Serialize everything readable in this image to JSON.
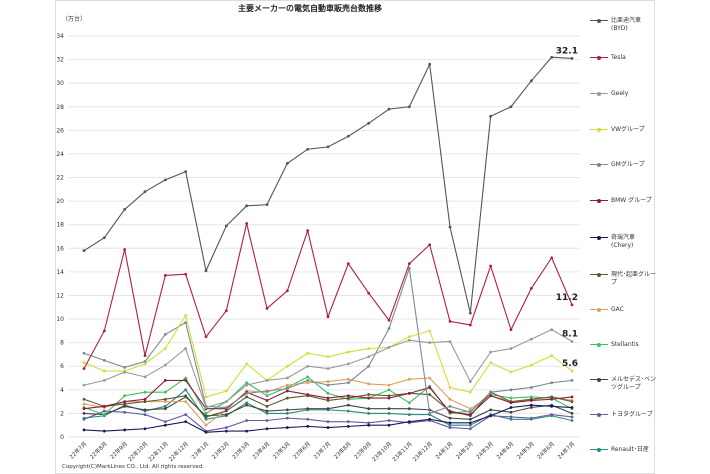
{
  "chart_data": {
    "type": "line",
    "title": "主要メーカーの電気自動車販売台数推移",
    "ylabel": "（万台）",
    "xlabel": "",
    "ylim": [
      0,
      34
    ],
    "yticks": [
      0,
      2,
      4,
      6,
      8,
      10,
      12,
      14,
      16,
      18,
      20,
      22,
      24,
      26,
      28,
      30,
      32,
      34
    ],
    "grid": true,
    "legend_position": "right",
    "categories": [
      "22年7月",
      "22年8月",
      "22年9月",
      "22年10月",
      "22年11月",
      "22年12月",
      "23年1月",
      "23年2月",
      "23年3月",
      "23年4月",
      "23年5月",
      "23年6月",
      "23年7月",
      "23年8月",
      "23年9月",
      "23年10月",
      "23年11月",
      "23年12月",
      "24年1月",
      "24年2月",
      "24年3月",
      "24年4月",
      "24年5月",
      "24年6月",
      "24年7月"
    ],
    "series": [
      {
        "name": "比亜迪汽車\n(BYD)",
        "color": "#555555",
        "values": [
          15.8,
          16.9,
          19.3,
          20.8,
          21.8,
          22.5,
          14.1,
          17.9,
          19.6,
          19.7,
          23.2,
          24.4,
          24.6,
          25.5,
          26.6,
          27.8,
          28.0,
          31.6,
          17.8,
          10.5,
          27.2,
          28.0,
          30.2,
          32.2,
          32.1
        ],
        "end_label": "32.1"
      },
      {
        "name": "Tesla",
        "color": "#b0203a",
        "values": [
          5.8,
          9.0,
          15.9,
          6.9,
          13.7,
          13.8,
          8.5,
          10.7,
          18.1,
          10.9,
          12.4,
          17.5,
          10.2,
          14.7,
          12.2,
          9.9,
          14.7,
          16.3,
          9.8,
          9.5,
          14.5,
          9.1,
          12.6,
          15.2,
          11.2
        ],
        "end_label": "11.2"
      },
      {
        "name": "Geely",
        "color": "#9a9a9a",
        "values": [
          4.4,
          4.8,
          5.5,
          5.1,
          6.1,
          7.5,
          2.5,
          3.0,
          4.4,
          4.8,
          5.0,
          6.0,
          5.8,
          6.2,
          6.8,
          7.6,
          8.2,
          8.0,
          8.1,
          4.7,
          7.2,
          7.5,
          8.3,
          9.1,
          8.1
        ],
        "end_label": "8.1"
      },
      {
        "name": "VWグループ",
        "color": "#d8dc3a",
        "values": [
          6.3,
          5.6,
          5.6,
          6.2,
          7.5,
          10.3,
          3.4,
          3.9,
          6.2,
          4.8,
          6.0,
          7.1,
          6.8,
          7.2,
          7.5,
          7.6,
          8.5,
          9.0,
          4.2,
          3.8,
          6.3,
          5.5,
          6.1,
          6.9,
          5.6
        ],
        "end_label": "5.6"
      },
      {
        "name": "GMグループ",
        "color": "#7a8a96",
        "values": [
          7.1,
          6.5,
          5.9,
          6.4,
          8.7,
          9.7,
          2.6,
          2.5,
          3.7,
          3.9,
          4.1,
          4.8,
          4.4,
          4.6,
          6.0,
          9.2,
          14.3,
          2.0,
          2.6,
          2.1,
          3.8,
          4.0,
          4.2,
          4.6,
          4.8
        ]
      },
      {
        "name": "BMW グループ",
        "color": "#8a1c3c",
        "values": [
          2.4,
          2.6,
          3.0,
          3.2,
          4.8,
          4.8,
          2.4,
          2.4,
          3.8,
          3.1,
          3.9,
          3.6,
          3.3,
          3.5,
          3.3,
          3.3,
          3.7,
          4.2,
          2.1,
          1.9,
          3.5,
          2.9,
          3.1,
          3.2,
          3.4
        ]
      },
      {
        "name": "奇瑞汽車\n(Chery)",
        "color": "#1a1a5a",
        "values": [
          0.6,
          0.5,
          0.6,
          0.7,
          1.0,
          1.3,
          0.4,
          0.5,
          0.5,
          0.7,
          0.8,
          0.9,
          0.8,
          0.9,
          1.0,
          1.0,
          1.3,
          1.5,
          1.2,
          1.2,
          1.8,
          2.5,
          2.7,
          2.6,
          2.5
        ]
      },
      {
        "name": "現代･起亜グループ",
        "color": "#5a5a2a",
        "values": [
          3.2,
          2.6,
          2.8,
          3.0,
          3.2,
          3.5,
          1.7,
          2.2,
          3.4,
          2.6,
          3.3,
          3.5,
          3.1,
          3.3,
          3.6,
          3.5,
          3.7,
          3.6,
          2.2,
          1.8,
          3.8,
          3.0,
          3.2,
          3.4,
          3.0
        ]
      },
      {
        "name": "GAC",
        "color": "#e0a060",
        "values": [
          2.8,
          2.5,
          3.0,
          3.0,
          3.0,
          3.0,
          1.0,
          2.3,
          3.9,
          3.8,
          4.4,
          4.6,
          4.7,
          4.9,
          4.5,
          4.4,
          4.9,
          5.0,
          3.2,
          2.4,
          3.5,
          3.0,
          3.2,
          3.4,
          3.1
        ]
      },
      {
        "name": "Stellantis",
        "color": "#3cc060",
        "values": [
          2.5,
          1.9,
          3.5,
          3.8,
          3.8,
          5.0,
          2.0,
          3.0,
          4.6,
          3.5,
          4.2,
          5.1,
          3.7,
          3.2,
          3.3,
          4.0,
          2.9,
          4.3,
          2.0,
          2.2,
          3.6,
          3.3,
          3.4,
          3.3,
          2.4
        ]
      },
      {
        "name": "メルセデス･ベンツグループ",
        "color": "#444444",
        "values": [
          2.0,
          1.9,
          2.6,
          2.3,
          2.4,
          3.4,
          1.8,
          1.9,
          2.7,
          2.2,
          2.3,
          2.4,
          2.4,
          2.7,
          2.4,
          2.4,
          2.4,
          2.3,
          1.6,
          1.5,
          2.3,
          2.1,
          2.5,
          2.7,
          2.0
        ]
      },
      {
        "name": "トヨタグループ",
        "color": "#6a5aa0",
        "values": [
          1.5,
          2.2,
          2.1,
          1.9,
          1.3,
          1.9,
          0.5,
          0.8,
          1.4,
          1.4,
          1.6,
          1.5,
          1.3,
          1.3,
          1.2,
          1.4,
          1.2,
          1.4,
          0.8,
          0.7,
          1.8,
          1.7,
          1.6,
          1.9,
          1.7
        ]
      },
      {
        "name": "Renault･日産",
        "color": "#2a8a80",
        "values": [
          1.6,
          1.8,
          2.7,
          2.2,
          2.6,
          4.0,
          1.5,
          1.8,
          2.9,
          2.0,
          2.0,
          2.3,
          2.3,
          2.2,
          2.0,
          2.0,
          1.9,
          1.9,
          1.0,
          1.0,
          1.9,
          1.5,
          1.5,
          1.8,
          1.4
        ]
      }
    ]
  },
  "copyright": "Copyright(C)MarkLines CO., Ltd. All rights reserved."
}
